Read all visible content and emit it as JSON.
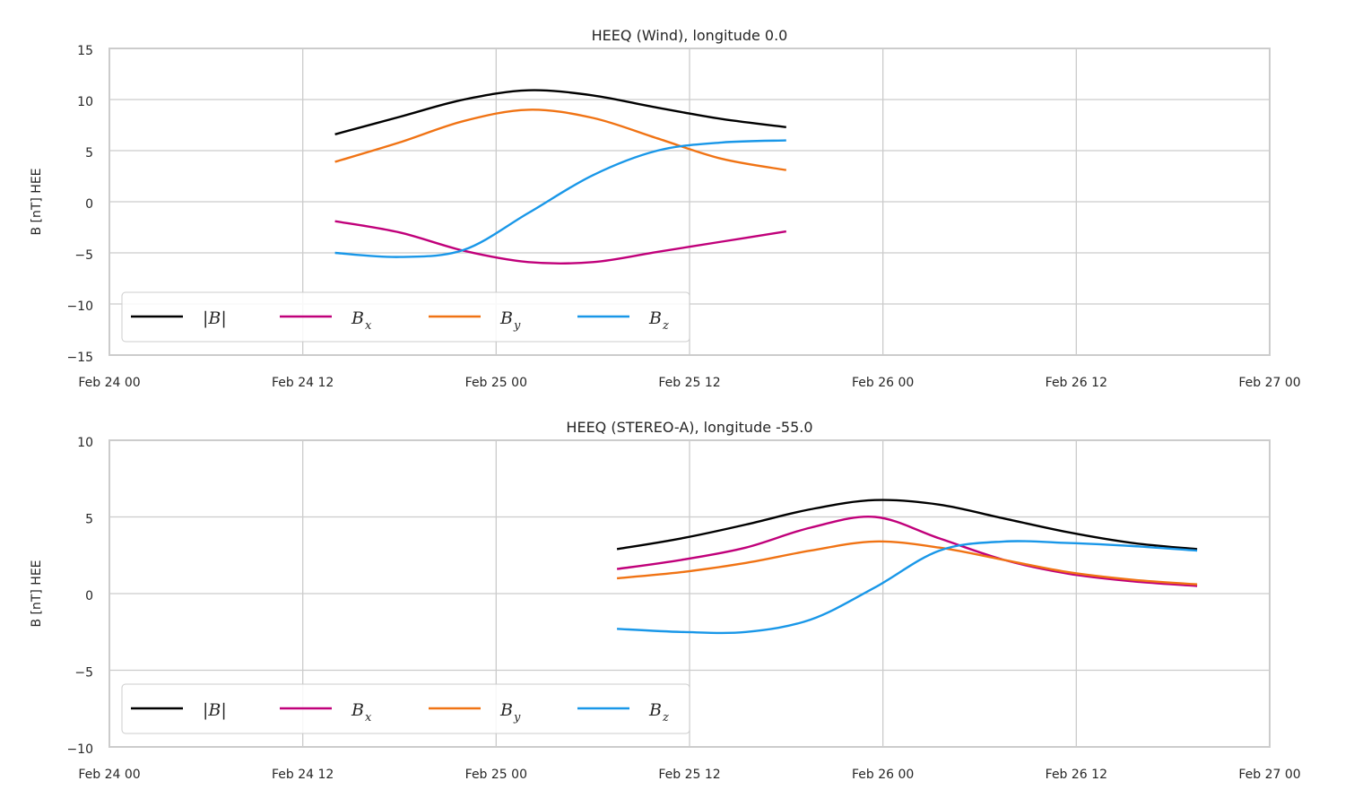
{
  "chart_data": [
    {
      "type": "line",
      "title": "HEEQ (Wind), longitude 0.0",
      "xlabel": "",
      "ylabel": "B [nT] HEE",
      "x_ticks": [
        "Feb 24 00",
        "Feb 24 12",
        "Feb 25 00",
        "Feb 25 12",
        "Feb 26 00",
        "Feb 26 12",
        "Feb 27 00"
      ],
      "xlim": [
        "2023-02-24T00:00",
        "2023-02-27T00:00"
      ],
      "ylim": [
        -15,
        15
      ],
      "y_ticks": [
        15,
        10,
        5,
        0,
        -5,
        -10,
        -15
      ],
      "y_tick_labels": [
        "15",
        "10",
        "5",
        "0",
        "−5",
        "−10",
        "−15"
      ],
      "grid": true,
      "legend_position": "lower-left",
      "legend_ncol": 4,
      "x": [
        "2023-02-24T14:00",
        "2023-02-24T18:00",
        "2023-02-24T22:00",
        "2023-02-25T02:00",
        "2023-02-25T06:00",
        "2023-02-25T10:00",
        "2023-02-25T14:00",
        "2023-02-25T18:00"
      ],
      "series": [
        {
          "name": "|B|",
          "color": "#000000",
          "values": [
            6.6,
            8.3,
            10.0,
            10.9,
            10.4,
            9.2,
            8.1,
            7.3
          ]
        },
        {
          "name": "Bx",
          "color": "#c0007a",
          "values": [
            -1.9,
            -3.0,
            -4.8,
            -5.9,
            -5.9,
            -4.9,
            -3.9,
            -2.9
          ]
        },
        {
          "name": "By",
          "color": "#f07314",
          "values": [
            3.9,
            5.8,
            7.9,
            9.0,
            8.2,
            6.2,
            4.2,
            3.1
          ]
        },
        {
          "name": "Bz",
          "color": "#1997e8",
          "values": [
            -5.0,
            -5.4,
            -4.7,
            -1.1,
            2.6,
            5.0,
            5.8,
            6.0
          ]
        }
      ]
    },
    {
      "type": "line",
      "title": "HEEQ (STEREO-A), longitude -55.0",
      "xlabel": "",
      "ylabel": "B [nT] HEE",
      "x_ticks": [
        "Feb 24 00",
        "Feb 24 12",
        "Feb 25 00",
        "Feb 25 12",
        "Feb 26 00",
        "Feb 26 12",
        "Feb 27 00"
      ],
      "xlim": [
        "2023-02-24T00:00",
        "2023-02-27T00:00"
      ],
      "ylim": [
        -10,
        10
      ],
      "y_ticks": [
        10,
        5,
        0,
        -5,
        -10
      ],
      "y_tick_labels": [
        "10",
        "5",
        "0",
        "−5",
        "−10"
      ],
      "grid": true,
      "legend_position": "lower-left",
      "legend_ncol": 4,
      "x": [
        "2023-02-25T07:30",
        "2023-02-25T11:30",
        "2023-02-25T15:30",
        "2023-02-25T19:30",
        "2023-02-25T23:30",
        "2023-02-26T03:30",
        "2023-02-26T07:30",
        "2023-02-26T11:30",
        "2023-02-26T15:30",
        "2023-02-26T19:30"
      ],
      "series": [
        {
          "name": "|B|",
          "color": "#000000",
          "values": [
            2.9,
            3.6,
            4.5,
            5.5,
            6.1,
            5.8,
            4.9,
            4.0,
            3.3,
            2.9
          ]
        },
        {
          "name": "Bx",
          "color": "#c0007a",
          "values": [
            1.6,
            2.2,
            3.0,
            4.3,
            5.0,
            3.6,
            2.2,
            1.3,
            0.8,
            0.5
          ]
        },
        {
          "name": "By",
          "color": "#f07314",
          "values": [
            1.0,
            1.4,
            2.0,
            2.8,
            3.4,
            3.0,
            2.2,
            1.4,
            0.9,
            0.6
          ]
        },
        {
          "name": "Bz",
          "color": "#1997e8",
          "values": [
            -2.3,
            -2.5,
            -2.5,
            -1.7,
            0.4,
            2.8,
            3.4,
            3.3,
            3.1,
            2.8
          ]
        }
      ]
    }
  ]
}
